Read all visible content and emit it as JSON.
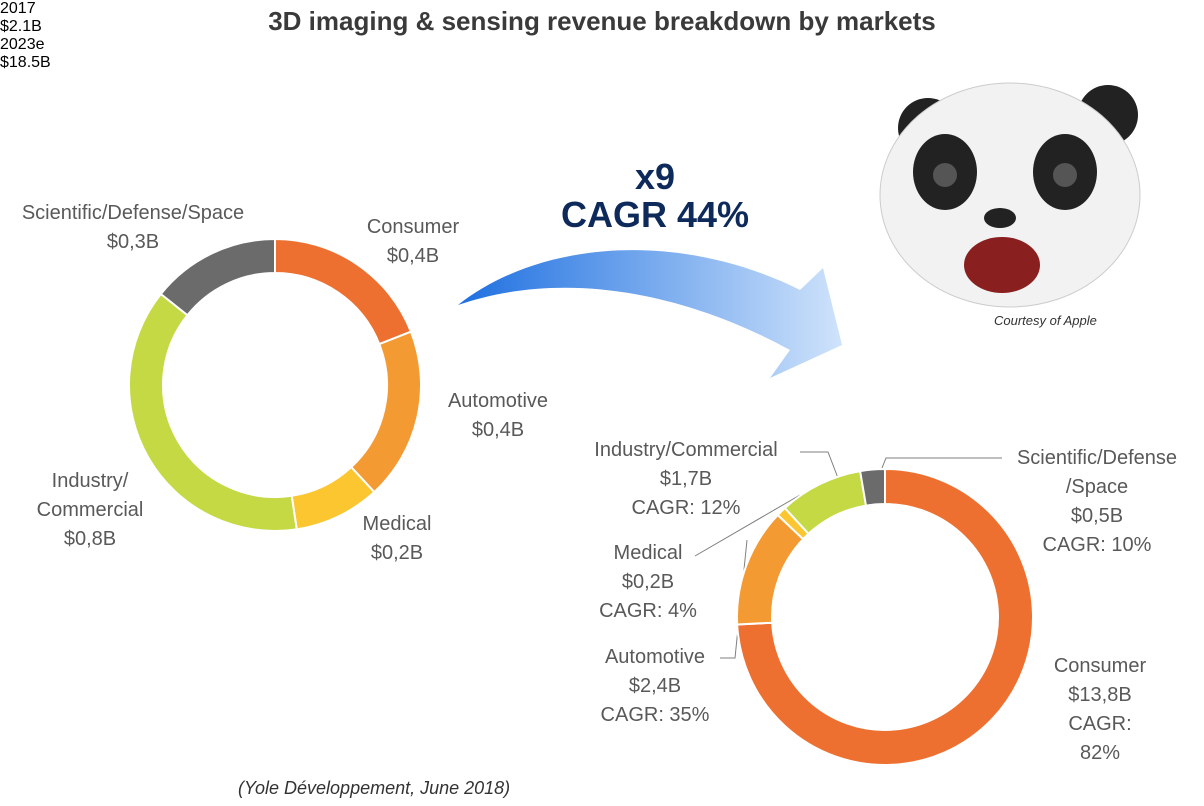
{
  "title": "3D imaging & sensing revenue breakdown by markets",
  "annotations": {
    "multiplier": "x9",
    "cagr": "CAGR 44%",
    "courtesy": "Courtesy of Apple",
    "source": "(Yole Développement, June 2018)"
  },
  "chart_data": [
    {
      "type": "donut",
      "year": "2017",
      "total_label": "$2.1B",
      "categories": [
        "Consumer",
        "Automotive",
        "Medical",
        "Industry/\nCommercial",
        "Scientific/Defense/Space"
      ],
      "values": [
        0.4,
        0.4,
        0.2,
        0.8,
        0.3
      ],
      "value_labels": [
        "$0,4B",
        "$0,4B",
        "$0,2B",
        "$0,8B",
        "$0,3B"
      ],
      "colors": [
        "#ed7031",
        "#f39a33",
        "#fbc62f",
        "#c4d943",
        "#6b6b6b"
      ]
    },
    {
      "type": "donut",
      "year": "2023e",
      "total_label": "$18.5B",
      "categories": [
        "Consumer",
        "Automotive",
        "Medical",
        "Industry/Commercial",
        "Scientific/Defense\n/Space"
      ],
      "values": [
        13.8,
        2.4,
        0.2,
        1.7,
        0.5
      ],
      "value_labels": [
        "$13,8B",
        "$2,4B",
        "$0,2B",
        "$1,7B",
        "$0,5B"
      ],
      "cagr_labels": [
        "CAGR: 82%",
        "CAGR: 35%",
        "CAGR: 4%",
        "CAGR: 12%",
        "CAGR: 10%"
      ],
      "colors": [
        "#ed7031",
        "#f39a33",
        "#fbc62f",
        "#c4d943",
        "#6b6b6b"
      ]
    }
  ]
}
